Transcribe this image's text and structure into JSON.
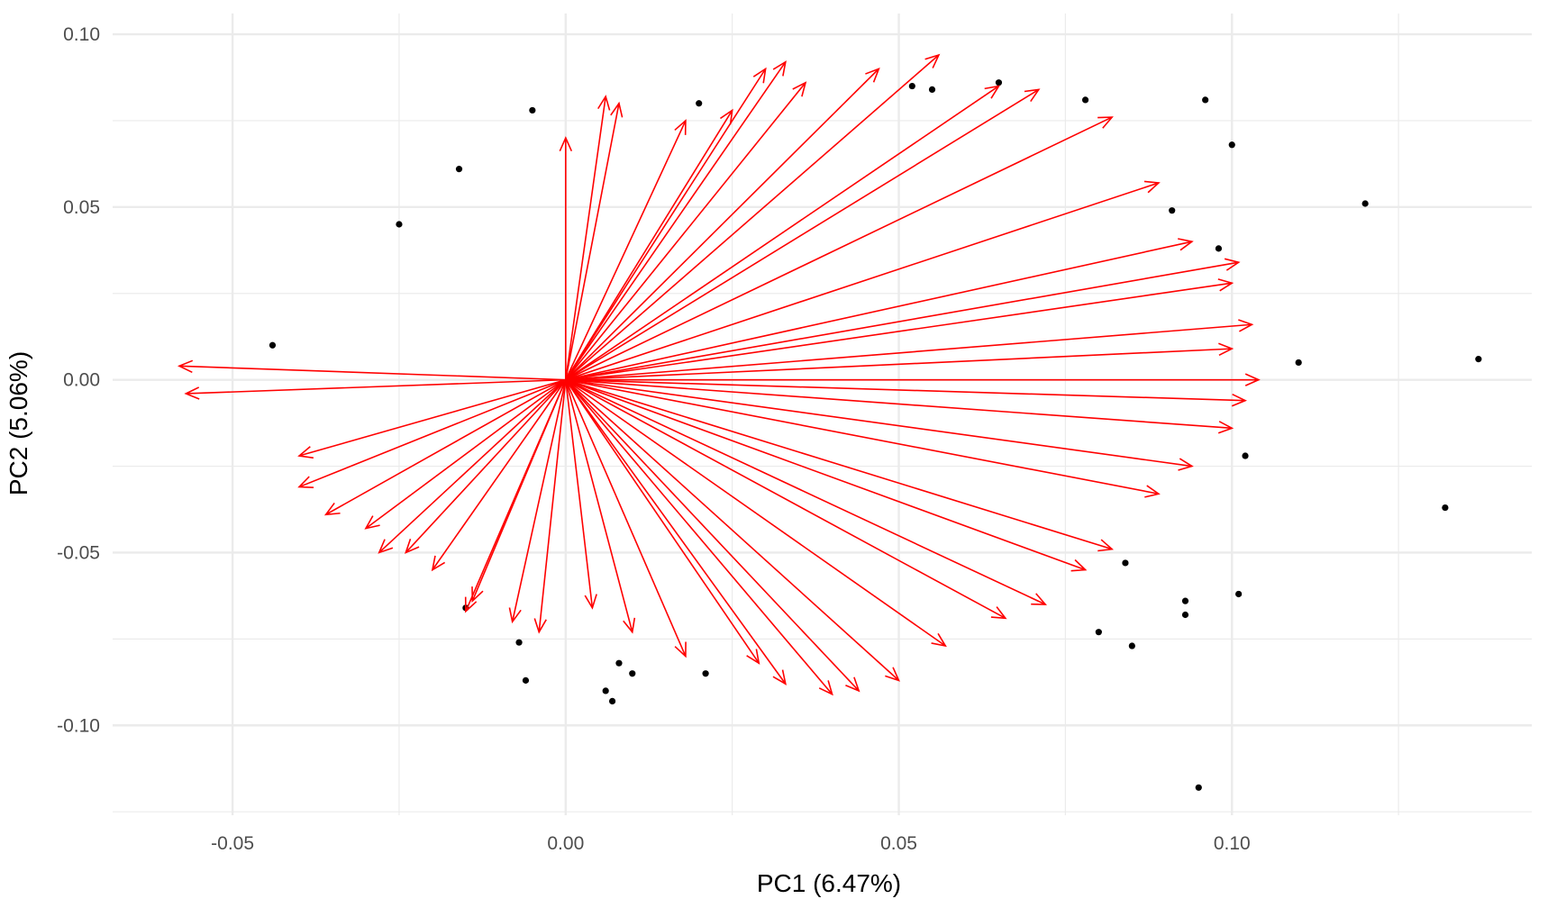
{
  "chart_data": {
    "type": "scatter",
    "title": "",
    "xlabel": "PC1 (6.47%)",
    "ylabel": "PC2 (5.06%)",
    "xlim": [
      -0.068,
      0.145
    ],
    "ylim": [
      -0.126,
      0.106
    ],
    "x_ticks": [
      -0.05,
      0.0,
      0.05,
      0.1
    ],
    "x_tick_labels": [
      "-0.05",
      "0.00",
      "0.05",
      "0.10"
    ],
    "y_ticks": [
      -0.1,
      -0.05,
      0.0,
      0.05,
      0.1
    ],
    "y_tick_labels": [
      "-0.10",
      "-0.05",
      "0.00",
      "0.05",
      "0.10"
    ],
    "grid": true,
    "legend": "none",
    "colors": {
      "points": "#000000",
      "arrows": "#ff0000",
      "grid": "#ebebeb"
    },
    "labeled_points": [
      {
        "x": 0.137,
        "y": 0.006
      },
      {
        "x": 0.12,
        "y": 0.051
      },
      {
        "x": 0.11,
        "y": 0.005
      },
      {
        "x": 0.132,
        "y": -0.037
      },
      {
        "x": 0.101,
        "y": -0.062
      },
      {
        "x": 0.095,
        "y": -0.118
      },
      {
        "x": 0.1,
        "y": 0.068
      },
      {
        "x": 0.096,
        "y": 0.081
      },
      {
        "x": 0.102,
        "y": -0.022
      },
      {
        "x": 0.093,
        "y": -0.064
      },
      {
        "x": 0.093,
        "y": -0.068
      },
      {
        "x": 0.085,
        "y": -0.077
      },
      {
        "x": 0.08,
        "y": -0.073
      },
      {
        "x": 0.084,
        "y": -0.053
      },
      {
        "x": 0.078,
        "y": 0.081
      },
      {
        "x": 0.098,
        "y": 0.038
      },
      {
        "x": 0.091,
        "y": 0.049
      },
      {
        "x": 0.052,
        "y": 0.085
      },
      {
        "x": 0.055,
        "y": 0.084
      },
      {
        "x": 0.065,
        "y": 0.086
      },
      {
        "x": 0.02,
        "y": 0.08
      },
      {
        "x": -0.005,
        "y": 0.078
      },
      {
        "x": 0.007,
        "y": -0.093
      },
      {
        "x": 0.006,
        "y": -0.09
      },
      {
        "x": 0.01,
        "y": -0.085
      },
      {
        "x": 0.008,
        "y": -0.082
      },
      {
        "x": -0.006,
        "y": -0.087
      },
      {
        "x": 0.021,
        "y": -0.085
      },
      {
        "x": -0.007,
        "y": -0.076
      },
      {
        "x": -0.015,
        "y": -0.066
      },
      {
        "x": -0.016,
        "y": 0.061
      },
      {
        "x": -0.025,
        "y": 0.045
      },
      {
        "x": -0.044,
        "y": 0.01
      }
    ],
    "arrow_origin": {
      "x": 0.0,
      "y": 0.0
    },
    "arrow_tips": [
      {
        "x": -0.058,
        "y": 0.004
      },
      {
        "x": -0.057,
        "y": -0.004
      },
      {
        "x": -0.04,
        "y": -0.031
      },
      {
        "x": -0.036,
        "y": -0.039
      },
      {
        "x": -0.03,
        "y": -0.043
      },
      {
        "x": -0.028,
        "y": -0.05
      },
      {
        "x": -0.02,
        "y": -0.055
      },
      {
        "x": -0.015,
        "y": -0.067
      },
      {
        "x": -0.004,
        "y": -0.073
      },
      {
        "x": 0.0,
        "y": 0.07
      },
      {
        "x": 0.006,
        "y": 0.082
      },
      {
        "x": 0.008,
        "y": 0.08
      },
      {
        "x": 0.018,
        "y": 0.075
      },
      {
        "x": 0.025,
        "y": 0.078
      },
      {
        "x": 0.03,
        "y": 0.09
      },
      {
        "x": 0.033,
        "y": 0.092
      },
      {
        "x": 0.036,
        "y": 0.086
      },
      {
        "x": 0.047,
        "y": 0.09
      },
      {
        "x": 0.056,
        "y": 0.094
      },
      {
        "x": 0.065,
        "y": 0.085
      },
      {
        "x": 0.071,
        "y": 0.084
      },
      {
        "x": 0.082,
        "y": 0.076
      },
      {
        "x": 0.089,
        "y": 0.057
      },
      {
        "x": 0.094,
        "y": 0.04
      },
      {
        "x": 0.101,
        "y": 0.034
      },
      {
        "x": 0.1,
        "y": 0.028
      },
      {
        "x": 0.103,
        "y": 0.016
      },
      {
        "x": 0.1,
        "y": 0.009
      },
      {
        "x": 0.104,
        "y": 0.0
      },
      {
        "x": 0.102,
        "y": -0.006
      },
      {
        "x": 0.1,
        "y": -0.014
      },
      {
        "x": 0.094,
        "y": -0.025
      },
      {
        "x": 0.089,
        "y": -0.033
      },
      {
        "x": 0.082,
        "y": -0.049
      },
      {
        "x": 0.078,
        "y": -0.055
      },
      {
        "x": 0.072,
        "y": -0.065
      },
      {
        "x": 0.066,
        "y": -0.069
      },
      {
        "x": 0.057,
        "y": -0.077
      },
      {
        "x": 0.05,
        "y": -0.087
      },
      {
        "x": 0.044,
        "y": -0.09
      },
      {
        "x": 0.04,
        "y": -0.091
      },
      {
        "x": 0.033,
        "y": -0.088
      },
      {
        "x": 0.029,
        "y": -0.082
      },
      {
        "x": 0.018,
        "y": -0.08
      },
      {
        "x": 0.01,
        "y": -0.073
      },
      {
        "x": 0.004,
        "y": -0.066
      },
      {
        "x": -0.008,
        "y": -0.07
      },
      {
        "x": -0.014,
        "y": -0.064
      },
      {
        "x": -0.024,
        "y": -0.05
      },
      {
        "x": -0.04,
        "y": -0.022
      }
    ]
  }
}
